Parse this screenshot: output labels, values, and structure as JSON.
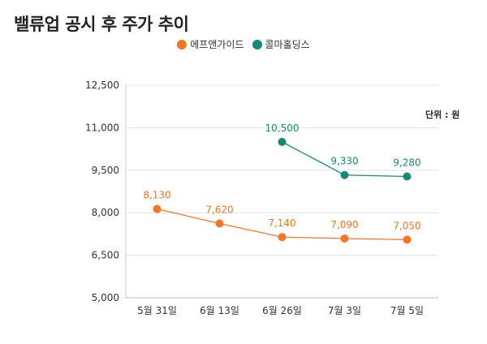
{
  "title": "밸류업 공시 후 주가 추이",
  "unit_label": "단위 : 원",
  "chart_data": {
    "type": "line",
    "title": "밸류업 공시 후 주가 추이",
    "categories": [
      "5월 31일",
      "6월 13일",
      "6월 26일",
      "7월 3일",
      "7월 5일"
    ],
    "series": [
      {
        "name": "에프앤가이드",
        "color": "#f97424",
        "values": [
          8130,
          7620,
          7140,
          7090,
          7050
        ],
        "labels": [
          "8,130",
          "7,620",
          "7,140",
          "7,090",
          "7,050"
        ]
      },
      {
        "name": "콜마홀딩스",
        "color": "#168a78",
        "values": [
          null,
          null,
          10500,
          9330,
          9280
        ],
        "labels": [
          null,
          null,
          "10,500",
          "9,330",
          "9,280"
        ]
      }
    ],
    "ylim": [
      5000,
      12500
    ],
    "yticks": [
      5000,
      6500,
      8000,
      9500,
      11000,
      12500
    ],
    "ytick_labels": [
      "5,000",
      "6,500",
      "8,000",
      "9,500",
      "11,000",
      "12,500"
    ],
    "grid": true,
    "legend_position": "top-center"
  }
}
